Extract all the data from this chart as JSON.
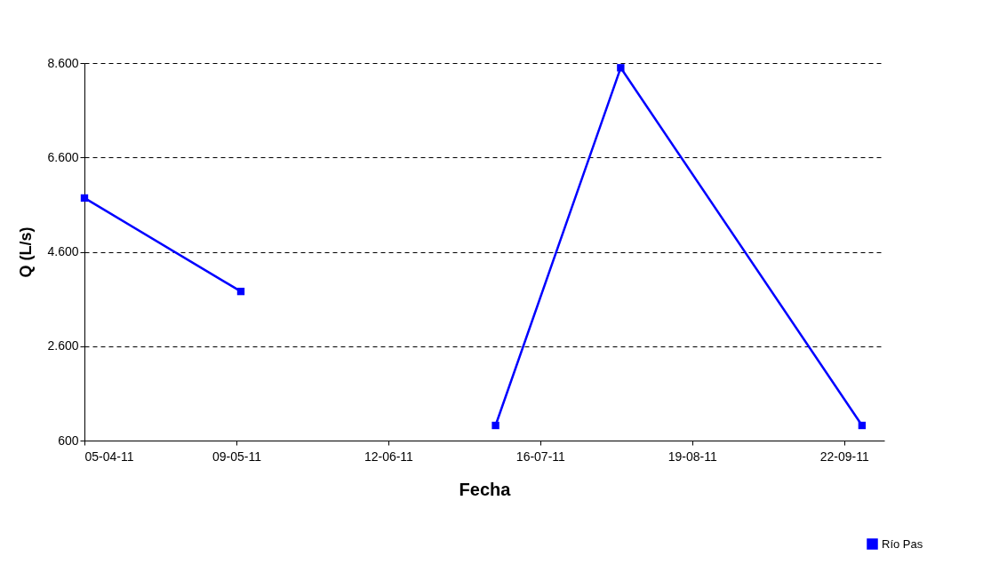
{
  "chart_data": {
    "type": "line",
    "xlabel": "Fecha",
    "ylabel": "Q (L/s)",
    "x": [
      "2011-04-05",
      "2011-05-10",
      "2011-06-12",
      "2011-07-06",
      "2011-08-03",
      "2011-09-26"
    ],
    "series": [
      {
        "name": "Río Pas",
        "color": "#0000ff",
        "values": [
          5740,
          3760,
          null,
          920,
          8500,
          920
        ]
      }
    ],
    "xlim": [
      "2011-04-05",
      "2011-10-01"
    ],
    "xticks": [
      {
        "value": "2011-04-05",
        "label": "05-04-11"
      },
      {
        "value": "2011-05-09",
        "label": "09-05-11"
      },
      {
        "value": "2011-06-12",
        "label": "12-06-11"
      },
      {
        "value": "2011-07-16",
        "label": "16-07-11"
      },
      {
        "value": "2011-08-19",
        "label": "19-08-11"
      },
      {
        "value": "2011-09-22",
        "label": "22-09-11"
      }
    ],
    "ylim": [
      600,
      8600
    ],
    "yticks": [
      {
        "value": 600,
        "label": "600"
      },
      {
        "value": 2600,
        "label": "2.600"
      },
      {
        "value": 4600,
        "label": "4.600"
      },
      {
        "value": 6600,
        "label": "6.600"
      },
      {
        "value": 8600,
        "label": "8.600"
      }
    ],
    "grid": "y",
    "legend": "bottom right",
    "marker": "square",
    "line_style": "solid"
  }
}
